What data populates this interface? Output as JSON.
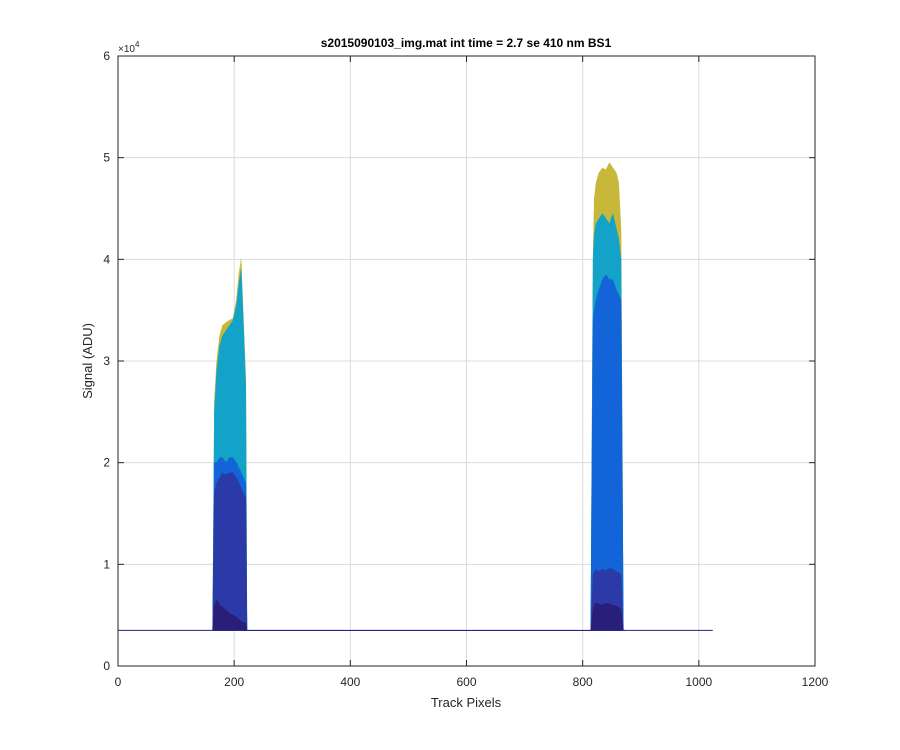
{
  "chart_data": {
    "type": "area",
    "title": "s2015090103_img.mat int time = 2.7 se  410 nm BS1",
    "xlabel": "Track Pixels",
    "ylabel": "Signal (ADU)",
    "xlim": [
      0,
      1200
    ],
    "ylim": [
      0,
      60000
    ],
    "xticks": [
      0,
      200,
      400,
      600,
      800,
      1000,
      1200
    ],
    "yticks": [
      0,
      10000,
      20000,
      30000,
      40000,
      50000,
      60000
    ],
    "ytick_labels": [
      "0",
      "1",
      "2",
      "3",
      "4",
      "5",
      "6"
    ],
    "y_exponent_label": "×10",
    "y_exponent_power": "4",
    "grid": true,
    "baseline": 3500,
    "series": [
      {
        "color": "#c8b83a",
        "x": [
          163,
          166,
          170,
          175,
          180,
          186,
          192,
          198,
          204,
          208,
          212,
          216,
          220,
          222,
          226,
          814,
          818,
          820,
          823,
          828,
          834,
          840,
          846,
          852,
          858,
          862,
          866,
          870,
          874,
          878
        ],
        "y": [
          3500,
          26000,
          30000,
          32500,
          33500,
          33800,
          34000,
          34200,
          36000,
          38500,
          40000,
          34000,
          28000,
          3500,
          3500,
          3500,
          40000,
          46000,
          47500,
          48500,
          49000,
          48800,
          49500,
          49000,
          48500,
          47500,
          43000,
          3500,
          3500,
          3500
        ]
      },
      {
        "color": "#13a3c8",
        "x": [
          163,
          166,
          170,
          175,
          180,
          186,
          192,
          198,
          204,
          208,
          212,
          216,
          220,
          222,
          226,
          814,
          818,
          820,
          823,
          828,
          834,
          840,
          846,
          852,
          858,
          862,
          866,
          870,
          874,
          878
        ],
        "y": [
          3500,
          25000,
          29000,
          31500,
          32500,
          33000,
          33500,
          34000,
          35500,
          37500,
          39000,
          33500,
          27500,
          3500,
          3500,
          3500,
          40000,
          42500,
          43500,
          44000,
          44500,
          44000,
          43500,
          44500,
          43000,
          42000,
          40000,
          3500,
          3500,
          3500
        ]
      },
      {
        "color": "#1264d8",
        "x": [
          163,
          166,
          170,
          175,
          180,
          186,
          192,
          198,
          204,
          208,
          212,
          216,
          220,
          222,
          226,
          814,
          818,
          820,
          823,
          828,
          834,
          840,
          846,
          852,
          858,
          862,
          866,
          870,
          874,
          878
        ],
        "y": [
          3500,
          20000,
          20000,
          20500,
          20500,
          20000,
          20500,
          20500,
          20000,
          19500,
          19000,
          18500,
          18000,
          3500,
          3500,
          3500,
          34000,
          35000,
          36000,
          37000,
          38000,
          38500,
          38000,
          38000,
          37000,
          36500,
          36000,
          3500,
          3500,
          3500
        ]
      },
      {
        "color": "#2b3aa6",
        "x": [
          163,
          166,
          170,
          175,
          180,
          186,
          192,
          198,
          204,
          208,
          212,
          216,
          220,
          222,
          226,
          814,
          818,
          820,
          823,
          828,
          834,
          840,
          846,
          852,
          858,
          862,
          866,
          870,
          874,
          878
        ],
        "y": [
          3500,
          17000,
          18000,
          18500,
          19000,
          18800,
          19000,
          19000,
          18500,
          18000,
          17500,
          17000,
          16500,
          3500,
          3500,
          3500,
          9000,
          9200,
          9500,
          9300,
          9500,
          9400,
          9600,
          9500,
          9300,
          9200,
          9000,
          3500,
          3500,
          3500
        ]
      },
      {
        "color": "#2a1f78",
        "x": [
          163,
          166,
          170,
          175,
          180,
          186,
          192,
          198,
          204,
          208,
          212,
          216,
          220,
          222,
          226,
          814,
          818,
          820,
          823,
          828,
          834,
          840,
          846,
          852,
          858,
          862,
          866,
          870,
          874,
          878
        ],
        "y": [
          3500,
          6000,
          6500,
          6000,
          5800,
          5500,
          5200,
          5000,
          4800,
          4600,
          4400,
          4300,
          4200,
          3500,
          3500,
          3500,
          5500,
          6000,
          6200,
          6100,
          6000,
          6200,
          6100,
          6000,
          5900,
          5800,
          5500,
          3500,
          3500,
          3500
        ]
      }
    ]
  }
}
